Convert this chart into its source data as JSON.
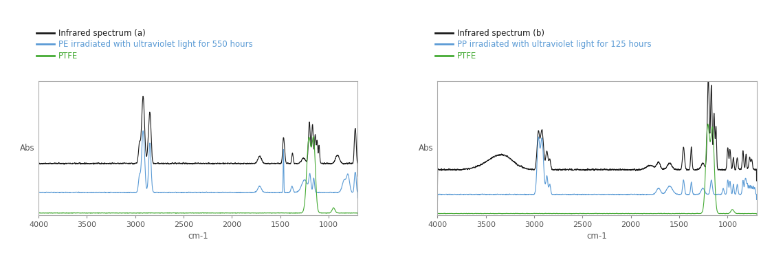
{
  "panel_a": {
    "legend_line1": "Infrared spectrum (a)",
    "legend_line2": "PE irradiated with ultraviolet light for 550 hours",
    "legend_line3": "PTFE"
  },
  "panel_b": {
    "legend_line1": "Infrared spectrum (b)",
    "legend_line2": "PP irradiated with ultraviolet light for 125 hours",
    "legend_line3": "PTFE"
  },
  "colors": {
    "black": "#1a1a1a",
    "blue": "#5b9bd5",
    "green": "#44aa33"
  },
  "xlabel": "cm-1",
  "ylabel": "Abs",
  "background": "#ffffff",
  "xticks": [
    4000,
    3500,
    3000,
    2500,
    2000,
    1500,
    1000
  ]
}
